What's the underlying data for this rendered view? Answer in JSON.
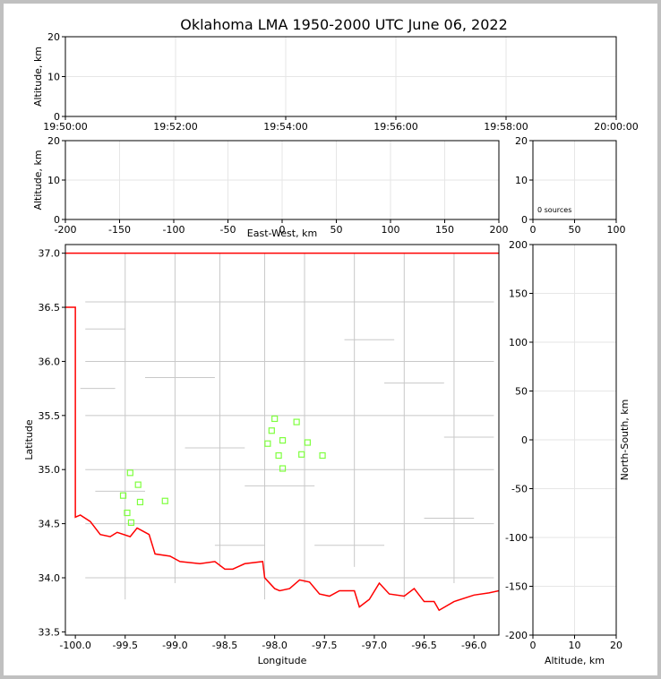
{
  "chart_data": [
    {
      "type": "scatter",
      "panel": "altitude-time",
      "title": "Oklahoma LMA 1950-2000 UTC June 06, 2022",
      "ylabel": "Altitude, km",
      "xticks": [
        "19:50:00",
        "19:52:00",
        "19:54:00",
        "19:56:00",
        "19:58:00",
        "20:00:00"
      ],
      "xlim_minutes": [
        0,
        10
      ],
      "ylim": [
        0,
        20
      ],
      "yticks": [
        0,
        10,
        20
      ],
      "grid": true,
      "points": []
    },
    {
      "type": "scatter",
      "panel": "altitude-east-west",
      "xlabel": "East-West, km",
      "ylabel": "Altitude, km",
      "xlim": [
        -200,
        200
      ],
      "xticks": [
        -200,
        -150,
        -100,
        -50,
        0,
        50,
        100,
        150,
        200
      ],
      "ylim": [
        0,
        20
      ],
      "yticks": [
        0,
        10,
        20
      ],
      "grid": true,
      "points": []
    },
    {
      "type": "histogram",
      "panel": "altitude-histogram",
      "annotation": "0 sources",
      "xlim": [
        0,
        100
      ],
      "xticks": [
        0,
        50,
        100
      ],
      "ylim": [
        0,
        20
      ],
      "yticks": [
        0,
        10,
        20
      ],
      "grid": true,
      "values": []
    },
    {
      "type": "scatter",
      "panel": "plan-view",
      "xlabel": "Longitude",
      "ylabel": "Latitude",
      "xlim": [
        -100.1,
        -95.75
      ],
      "ylim": [
        33.47,
        37.08
      ],
      "xticks": [
        -100.0,
        -99.5,
        -99.0,
        -98.5,
        -98.0,
        -97.5,
        -97.0,
        -96.5,
        -96.0
      ],
      "yticks": [
        33.5,
        34.0,
        34.5,
        35.0,
        35.5,
        36.0,
        36.5,
        37.0
      ],
      "marker": "square",
      "marker_color": "#7fff3f",
      "state_border_color": "#ff0000",
      "county_color": "#c8c8c8",
      "stations": [
        {
          "lon": -99.45,
          "lat": 34.97
        },
        {
          "lon": -99.37,
          "lat": 34.86
        },
        {
          "lon": -99.52,
          "lat": 34.76
        },
        {
          "lon": -99.35,
          "lat": 34.7
        },
        {
          "lon": -99.48,
          "lat": 34.6
        },
        {
          "lon": -99.44,
          "lat": 34.51
        },
        {
          "lon": -99.1,
          "lat": 34.71
        },
        {
          "lon": -98.0,
          "lat": 35.47
        },
        {
          "lon": -98.03,
          "lat": 35.36
        },
        {
          "lon": -98.07,
          "lat": 35.24
        },
        {
          "lon": -97.92,
          "lat": 35.27
        },
        {
          "lon": -97.96,
          "lat": 35.13
        },
        {
          "lon": -97.92,
          "lat": 35.01
        },
        {
          "lon": -97.78,
          "lat": 35.44
        },
        {
          "lon": -97.67,
          "lat": 35.25
        },
        {
          "lon": -97.73,
          "lat": 35.14
        },
        {
          "lon": -97.52,
          "lat": 35.13
        }
      ]
    },
    {
      "type": "scatter",
      "panel": "north-south-altitude",
      "xlabel": "Altitude, km",
      "ylabel": "North-South, km",
      "xlim": [
        0,
        20
      ],
      "xticks": [
        0,
        10,
        20
      ],
      "ylim": [
        -200,
        200
      ],
      "yticks": [
        -200,
        -150,
        -100,
        -50,
        0,
        50,
        100,
        150,
        200
      ],
      "grid": true,
      "points": []
    }
  ]
}
